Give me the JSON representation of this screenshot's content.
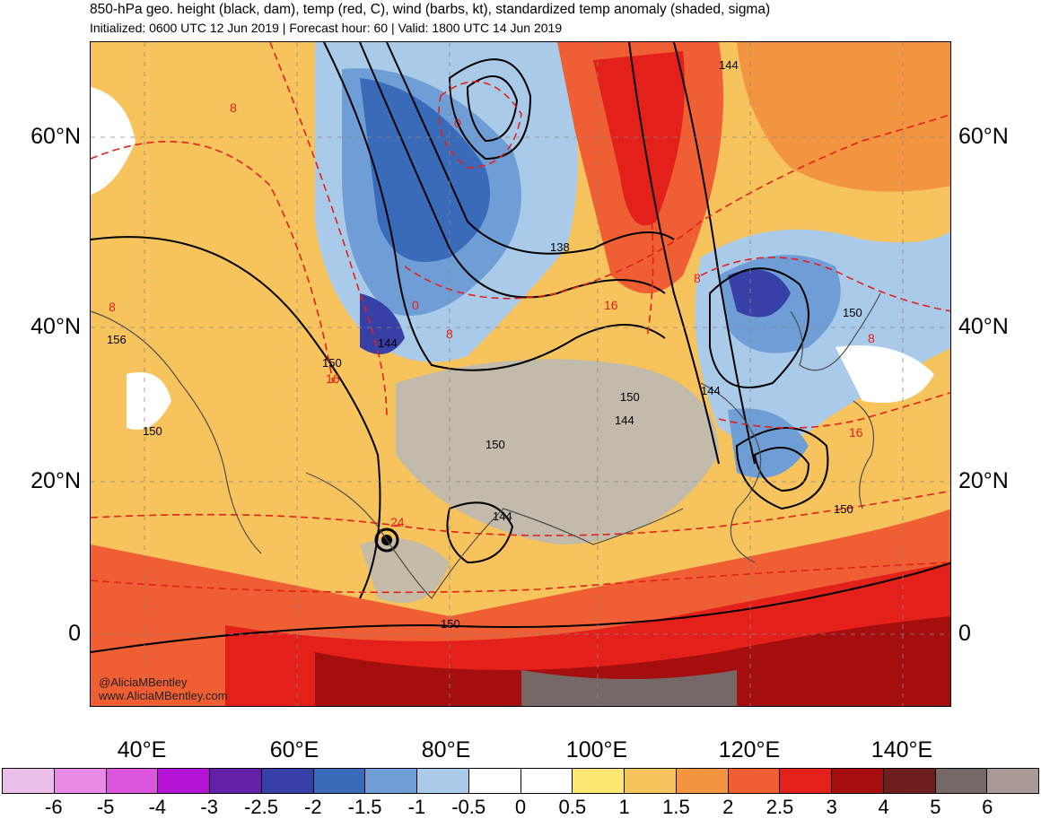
{
  "header": {
    "title": "850-hPa geo. height (black, dam), temp (red, C), wind (barbs, kt), standardized temp anomaly (shaded, sigma)",
    "subtitle": "Initialized: 0600 UTC 12 Jun 2019 | Forecast hour: 60 | Valid: 1800 UTC 14 Jun 2019"
  },
  "axes": {
    "lat_labels": [
      "60°N",
      "40°N",
      "20°N",
      "0"
    ],
    "lon_labels": [
      "40°E",
      "60°E",
      "80°E",
      "100°E",
      "120°E",
      "140°E"
    ]
  },
  "map": {
    "height_labels": [
      "144",
      "144",
      "138",
      "150",
      "150",
      "150",
      "156",
      "150",
      "144",
      "144",
      "150",
      "150",
      "144",
      "150"
    ],
    "temp_labels": [
      "8",
      "8",
      "0",
      "0",
      "8",
      "16",
      "16",
      "8",
      "8",
      "16",
      "24"
    ],
    "credit": {
      "handle": "@AliciaMBentley",
      "site": "www.AliciaMBentley.com"
    }
  },
  "colorbar": {
    "colors": [
      "#ebbfe9",
      "#e789e5",
      "#dc55dd",
      "#b313d4",
      "#6420a8",
      "#3740a6",
      "#3a6bbb",
      "#6f9ed6",
      "#a9cae8",
      "#ffffff",
      "#ffffff",
      "#fbe772",
      "#f7c35c",
      "#f39440",
      "#f05e33",
      "#e3201a",
      "#a50e0e",
      "#6f1e1e",
      "#766866",
      "#a99a98"
    ],
    "labels": [
      "-6",
      "-5",
      "-4",
      "-3",
      "-2.5",
      "-2",
      "-1.5",
      "-1",
      "-0.5",
      "0",
      "0.5",
      "1",
      "1.5",
      "2",
      "2.5",
      "3",
      "4",
      "5",
      "6"
    ]
  }
}
